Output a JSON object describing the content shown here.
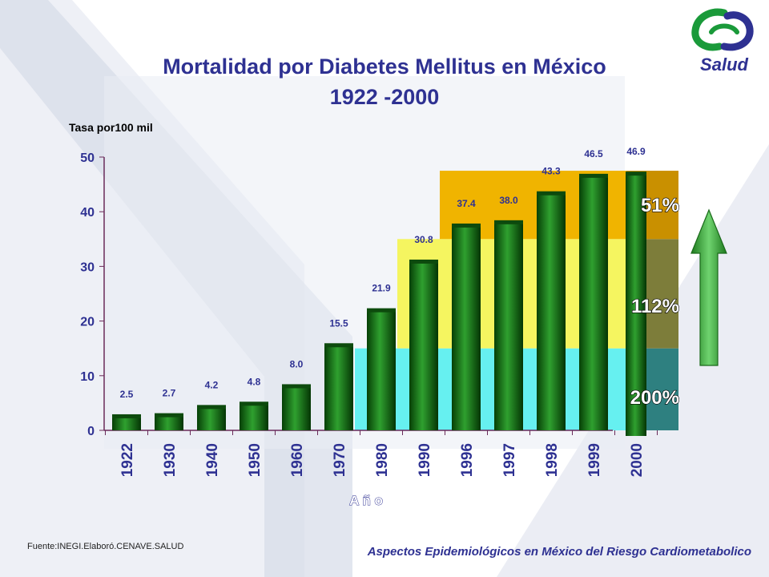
{
  "title_line1": "Mortalidad  por Diabetes Mellitus en México",
  "title_line2": "1922 -2000",
  "logo_text": "Salud",
  "footer_source": "Fuente:INEGI.Elaboró.CENAVE.SALUD",
  "footer_caption": "Aspectos Epidemiológicos en México del Riesgo Cardiometabolico",
  "colors": {
    "title": "#2e3192",
    "axis": "#6a2a5a",
    "bar": "#0b6b0b",
    "bar_light": "#2fa02f",
    "label": "#2e3192",
    "band_200": "#66f0f0",
    "band_112": "#f5f560",
    "band_51": "#f0b400",
    "arrow": "#3db23d"
  },
  "chart_data": {
    "type": "bar",
    "ylabel": "Tasa por100 mil",
    "xlabel": "A ñ o",
    "ylim": [
      0,
      50
    ],
    "yticks": [
      0,
      10,
      20,
      30,
      40,
      50
    ],
    "categories": [
      "1922",
      "1930",
      "1940",
      "1950",
      "1960",
      "1970",
      "1980",
      "1990",
      "1996",
      "1997",
      "1998",
      "1999",
      "2000"
    ],
    "values": [
      2.5,
      2.7,
      4.2,
      4.8,
      8.0,
      15.5,
      21.9,
      30.8,
      37.4,
      38.0,
      43.3,
      46.5,
      46.9
    ],
    "value_labels": [
      "2.5",
      "2.7",
      "4.2",
      "4.8",
      "8.0",
      "15.5",
      "21.9",
      "30.8",
      "37.4",
      "38.0",
      "43.3",
      "46.5",
      "46.9"
    ],
    "bands": [
      {
        "label": "200%",
        "from_category": "1970",
        "y_from": 0,
        "y_to": 15
      },
      {
        "label": "112%",
        "from_category": "1980",
        "y_from": 15,
        "y_to": 35
      },
      {
        "label": "51%",
        "from_category": "1990",
        "y_from": 35,
        "y_to": 47.5
      }
    ],
    "annotation": "increase-arrow"
  }
}
